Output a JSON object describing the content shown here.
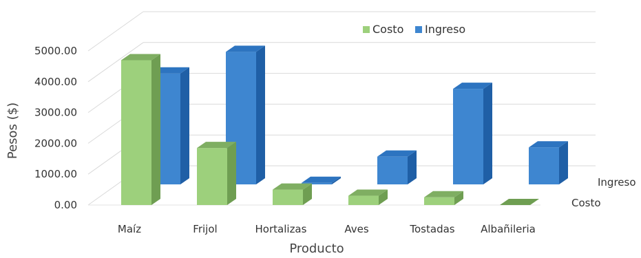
{
  "chart_data": {
    "type": "bar",
    "variant": "3d-depth",
    "categories": [
      "Maíz",
      "Frijol",
      "Hortalizas",
      "Aves",
      "Tostadas",
      "Albañileria"
    ],
    "series": [
      {
        "name": "Costo",
        "values": [
          4700,
          1850,
          500,
          300,
          250,
          0
        ]
      },
      {
        "name": "Ingreso",
        "values": [
          3600,
          4300,
          50,
          900,
          3100,
          1200
        ]
      }
    ],
    "xlabel": "Producto",
    "ylabel": "Pesos ($)",
    "yticks": [
      "0.00",
      "1000.00",
      "2000.00",
      "3000.00",
      "4000.00",
      "5000.00"
    ],
    "ylim": [
      0,
      5000
    ],
    "depth_labels": [
      "Costo",
      "Ingreso"
    ],
    "grid": true,
    "legend": {
      "position": "top-right"
    },
    "colors": {
      "Costo": {
        "front": "#9dd07c",
        "side": "#6f9e52",
        "top": "#7fae62"
      },
      "Ingreso": {
        "front": "#3e86d0",
        "side": "#1f5fa6",
        "top": "#2d74c0"
      }
    }
  }
}
